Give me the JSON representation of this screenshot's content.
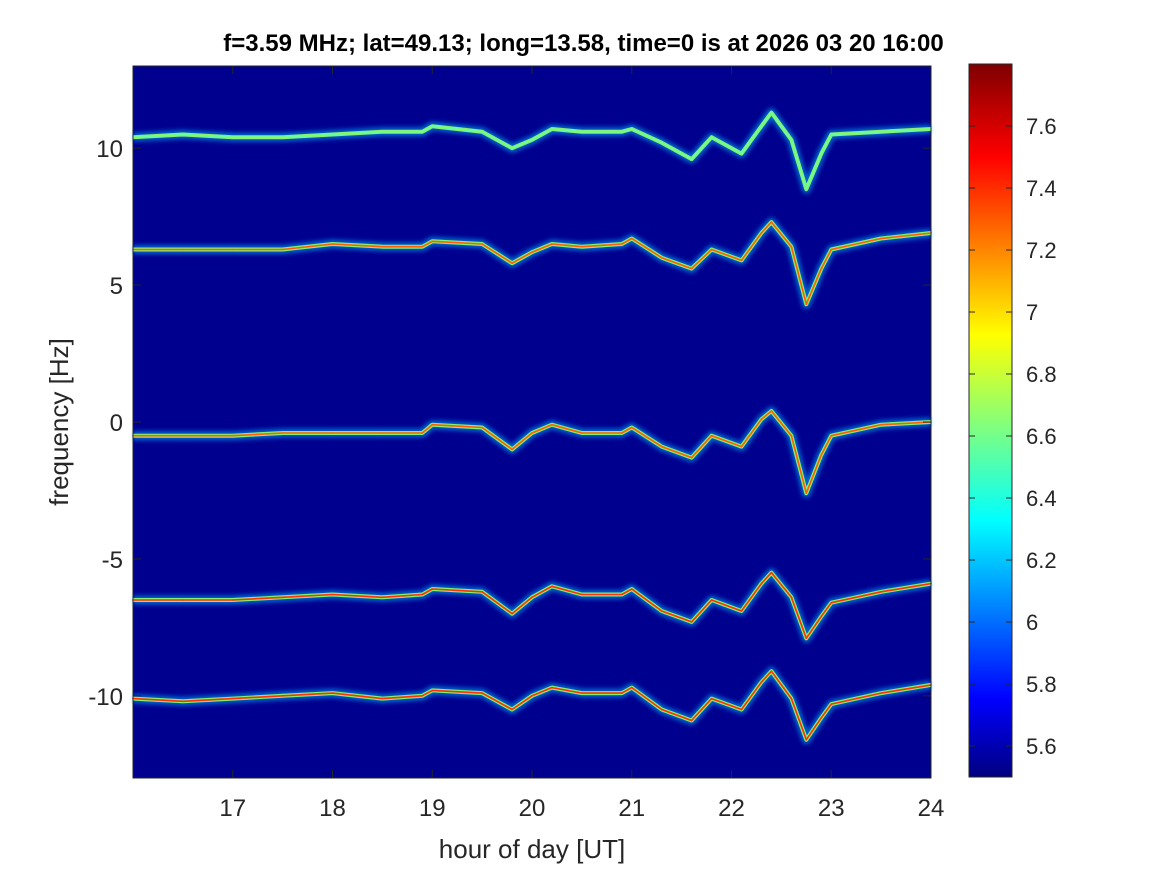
{
  "chart_data": {
    "type": "heatmap",
    "title": "f=3.59 MHz;  lat=49.13; long=13.58, time=0 is at 2026 03 20 16:00",
    "xlabel": "hour of day [UT]",
    "ylabel": "frequency [Hz]",
    "xlim": [
      16.0,
      24.0
    ],
    "ylim": [
      -13.0,
      13.0
    ],
    "x_ticks": [
      17,
      18,
      19,
      20,
      21,
      22,
      23,
      24
    ],
    "y_ticks": [
      10,
      5,
      0,
      -5,
      -10
    ],
    "colorbar": {
      "colormap": "jet",
      "range": [
        5.5,
        7.8
      ],
      "ticks": [
        "7.6",
        "7.4",
        "7.2",
        "7",
        "6.8",
        "6.6",
        "6.4",
        "6.2",
        "6",
        "5.8",
        "5.6"
      ],
      "tick_values": [
        7.6,
        7.4,
        7.2,
        7.0,
        6.8,
        6.6,
        6.4,
        6.2,
        6.0,
        5.8,
        5.6
      ]
    },
    "background_value": 5.5,
    "traces": [
      {
        "offset_hz": 10.5,
        "intensity": 6.6,
        "points": [
          [
            16.0,
            10.4
          ],
          [
            16.5,
            10.5
          ],
          [
            17.0,
            10.4
          ],
          [
            17.5,
            10.4
          ],
          [
            18.0,
            10.5
          ],
          [
            18.5,
            10.6
          ],
          [
            18.9,
            10.6
          ],
          [
            19.0,
            10.8
          ],
          [
            19.5,
            10.6
          ],
          [
            19.8,
            10.0
          ],
          [
            20.0,
            10.3
          ],
          [
            20.2,
            10.7
          ],
          [
            20.5,
            10.6
          ],
          [
            20.9,
            10.6
          ],
          [
            21.0,
            10.7
          ],
          [
            21.3,
            10.2
          ],
          [
            21.6,
            9.6
          ],
          [
            21.8,
            10.4
          ],
          [
            22.1,
            9.8
          ],
          [
            22.3,
            10.8
          ],
          [
            22.4,
            11.3
          ],
          [
            22.6,
            10.3
          ],
          [
            22.75,
            8.5
          ],
          [
            22.9,
            9.8
          ],
          [
            23.0,
            10.5
          ],
          [
            23.5,
            10.6
          ],
          [
            24.0,
            10.7
          ]
        ]
      },
      {
        "offset_hz": 6.3,
        "intensity": 7.3,
        "points": [
          [
            16.0,
            6.3
          ],
          [
            16.5,
            6.3
          ],
          [
            17.0,
            6.3
          ],
          [
            17.5,
            6.3
          ],
          [
            18.0,
            6.5
          ],
          [
            18.5,
            6.4
          ],
          [
            18.9,
            6.4
          ],
          [
            19.0,
            6.6
          ],
          [
            19.5,
            6.5
          ],
          [
            19.8,
            5.8
          ],
          [
            20.0,
            6.2
          ],
          [
            20.2,
            6.5
          ],
          [
            20.5,
            6.4
          ],
          [
            20.9,
            6.5
          ],
          [
            21.0,
            6.7
          ],
          [
            21.3,
            6.0
          ],
          [
            21.6,
            5.6
          ],
          [
            21.8,
            6.3
          ],
          [
            22.1,
            5.9
          ],
          [
            22.3,
            6.9
          ],
          [
            22.4,
            7.3
          ],
          [
            22.6,
            6.4
          ],
          [
            22.75,
            4.3
          ],
          [
            22.9,
            5.6
          ],
          [
            23.0,
            6.3
          ],
          [
            23.5,
            6.7
          ],
          [
            24.0,
            6.9
          ]
        ]
      },
      {
        "offset_hz": -0.5,
        "intensity": 7.3,
        "points": [
          [
            16.0,
            -0.5
          ],
          [
            16.5,
            -0.5
          ],
          [
            17.0,
            -0.5
          ],
          [
            17.5,
            -0.4
          ],
          [
            18.0,
            -0.4
          ],
          [
            18.5,
            -0.4
          ],
          [
            18.9,
            -0.4
          ],
          [
            19.0,
            -0.1
          ],
          [
            19.5,
            -0.2
          ],
          [
            19.8,
            -1.0
          ],
          [
            20.0,
            -0.4
          ],
          [
            20.2,
            -0.1
          ],
          [
            20.5,
            -0.4
          ],
          [
            20.9,
            -0.4
          ],
          [
            21.0,
            -0.2
          ],
          [
            21.3,
            -0.9
          ],
          [
            21.6,
            -1.3
          ],
          [
            21.8,
            -0.5
          ],
          [
            22.1,
            -0.9
          ],
          [
            22.3,
            0.1
          ],
          [
            22.4,
            0.4
          ],
          [
            22.6,
            -0.5
          ],
          [
            22.75,
            -2.6
          ],
          [
            22.9,
            -1.2
          ],
          [
            23.0,
            -0.5
          ],
          [
            23.5,
            -0.1
          ],
          [
            24.0,
            0.0
          ]
        ]
      },
      {
        "offset_hz": -6.5,
        "intensity": 7.4,
        "points": [
          [
            16.0,
            -6.5
          ],
          [
            16.5,
            -6.5
          ],
          [
            17.0,
            -6.5
          ],
          [
            17.5,
            -6.4
          ],
          [
            18.0,
            -6.3
          ],
          [
            18.5,
            -6.4
          ],
          [
            18.9,
            -6.3
          ],
          [
            19.0,
            -6.1
          ],
          [
            19.5,
            -6.2
          ],
          [
            19.8,
            -7.0
          ],
          [
            20.0,
            -6.4
          ],
          [
            20.2,
            -6.0
          ],
          [
            20.5,
            -6.3
          ],
          [
            20.9,
            -6.3
          ],
          [
            21.0,
            -6.1
          ],
          [
            21.3,
            -6.9
          ],
          [
            21.6,
            -7.3
          ],
          [
            21.8,
            -6.5
          ],
          [
            22.1,
            -6.9
          ],
          [
            22.3,
            -5.9
          ],
          [
            22.4,
            -5.5
          ],
          [
            22.6,
            -6.4
          ],
          [
            22.75,
            -7.9
          ],
          [
            22.9,
            -7.1
          ],
          [
            23.0,
            -6.6
          ],
          [
            23.5,
            -6.2
          ],
          [
            24.0,
            -5.9
          ]
        ]
      },
      {
        "offset_hz": -10.1,
        "intensity": 7.4,
        "points": [
          [
            16.0,
            -10.1
          ],
          [
            16.5,
            -10.2
          ],
          [
            17.0,
            -10.1
          ],
          [
            17.5,
            -10.0
          ],
          [
            18.0,
            -9.9
          ],
          [
            18.5,
            -10.1
          ],
          [
            18.9,
            -10.0
          ],
          [
            19.0,
            -9.8
          ],
          [
            19.5,
            -9.9
          ],
          [
            19.8,
            -10.5
          ],
          [
            20.0,
            -10.0
          ],
          [
            20.2,
            -9.7
          ],
          [
            20.5,
            -9.9
          ],
          [
            20.9,
            -9.9
          ],
          [
            21.0,
            -9.7
          ],
          [
            21.3,
            -10.5
          ],
          [
            21.6,
            -10.9
          ],
          [
            21.8,
            -10.1
          ],
          [
            22.1,
            -10.5
          ],
          [
            22.3,
            -9.5
          ],
          [
            22.4,
            -9.1
          ],
          [
            22.6,
            -10.1
          ],
          [
            22.75,
            -11.6
          ],
          [
            22.9,
            -10.8
          ],
          [
            23.0,
            -10.3
          ],
          [
            23.5,
            -9.9
          ],
          [
            24.0,
            -9.6
          ]
        ]
      }
    ]
  }
}
